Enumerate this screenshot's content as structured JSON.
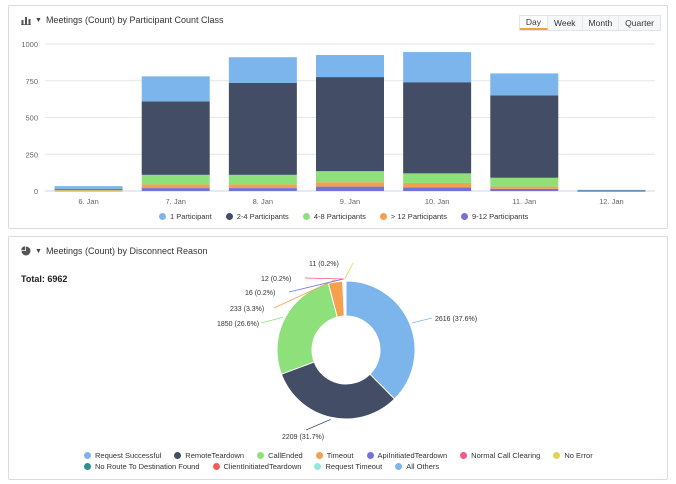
{
  "panel1": {
    "title": "Meetings (Count) by Participant Count Class",
    "tabs": [
      {
        "label": "Day",
        "active": true
      },
      {
        "label": "Week",
        "active": false
      },
      {
        "label": "Month",
        "active": false
      },
      {
        "label": "Quarter",
        "active": false
      }
    ]
  },
  "panel2": {
    "title": "Meetings (Count) by Disconnect Reason",
    "total_label": "Total: 6962"
  },
  "chart_data": [
    {
      "type": "bar",
      "stacked": true,
      "categories": [
        "6. Jan",
        "7. Jan",
        "8. Jan",
        "9. Jan",
        "10. Jan",
        "11. Jan",
        "12. Jan"
      ],
      "ylim": [
        0,
        1000
      ],
      "yticks": [
        0,
        250,
        500,
        750,
        1000
      ],
      "grid": true,
      "legend_position": "bottom",
      "series": [
        {
          "name": "9-12 Participants",
          "color": "#7472d8",
          "values": [
            3,
            20,
            20,
            30,
            25,
            15,
            1
          ]
        },
        {
          "name": "> 12 Participants",
          "color": "#f6a04d",
          "values": [
            2,
            25,
            25,
            30,
            30,
            15,
            0
          ]
        },
        {
          "name": "4-8 Participants",
          "color": "#8ee07a",
          "values": [
            5,
            65,
            65,
            75,
            65,
            60,
            1
          ]
        },
        {
          "name": "2-4 Participants",
          "color": "#434e66",
          "values": [
            5,
            500,
            625,
            640,
            620,
            560,
            1
          ]
        },
        {
          "name": "1 Participant",
          "color": "#7cb5ec",
          "values": [
            18,
            170,
            175,
            150,
            205,
            150,
            5
          ]
        }
      ],
      "legend": [
        {
          "name": "1 Participant",
          "color": "#7cb5ec"
        },
        {
          "name": "2-4 Participants",
          "color": "#434e66"
        },
        {
          "name": "4-8 Participants",
          "color": "#8ee07a"
        },
        {
          "name": "> 12 Participants",
          "color": "#f6a04d"
        },
        {
          "name": "9-12 Participants",
          "color": "#7472d8"
        }
      ]
    },
    {
      "type": "pie",
      "donut": true,
      "total": 6962,
      "slices": [
        {
          "name": "Request Successful",
          "value": 2616,
          "label": "2616 (37.6%)",
          "color": "#7cb5ec"
        },
        {
          "name": "RemoteTeardown",
          "value": 2209,
          "label": "2209 (31.7%)",
          "color": "#434e66"
        },
        {
          "name": "CallEnded",
          "value": 1850,
          "label": "1850 (26.6%)",
          "color": "#8ee07a"
        },
        {
          "name": "Timeout",
          "value": 233,
          "label": "233 (3.3%)",
          "color": "#f6a04d"
        },
        {
          "name": "ApiInitiatedTeardown",
          "value": 16,
          "label": "16 (0.2%)",
          "color": "#7472d8"
        },
        {
          "name": "Normal Call Clearing",
          "value": 12,
          "label": "12 (0.2%)",
          "color": "#f15c80"
        },
        {
          "name": "No Error",
          "value": 11,
          "label": "11 (0.2%)",
          "color": "#e4d354"
        },
        {
          "name": "No Route To Destination Found",
          "value": 6,
          "label": "",
          "color": "#2b908f"
        },
        {
          "name": "ClientInitiatedTeardown",
          "value": 4,
          "label": "",
          "color": "#f45b5b"
        },
        {
          "name": "Request Timeout",
          "value": 3,
          "label": "",
          "color": "#91e8e1"
        },
        {
          "name": "All Others",
          "value": 2,
          "label": "",
          "color": "#7cb5ec"
        }
      ],
      "legend_rows": [
        [
          "Request Successful",
          "RemoteTeardown",
          "CallEnded",
          "Timeout",
          "ApiInitiatedTeardown",
          "Normal Call Clearing",
          "No Error"
        ],
        [
          "No Route To Destination Found",
          "ClientInitiatedTeardown",
          "Request Timeout",
          "All Others"
        ]
      ]
    }
  ]
}
